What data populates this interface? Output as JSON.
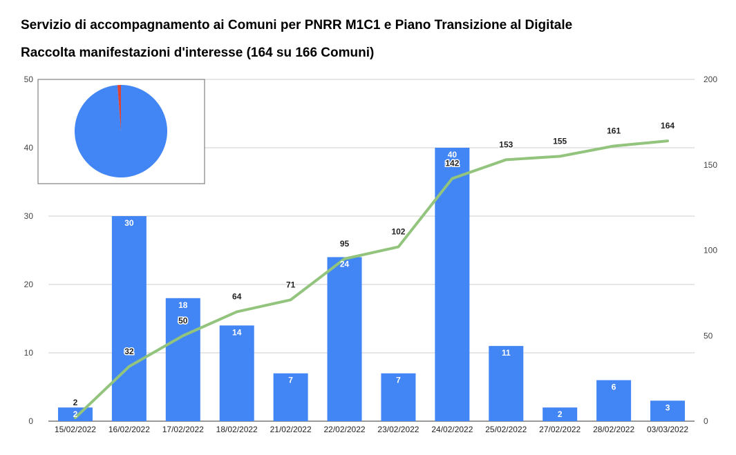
{
  "chart_data": {
    "type": "bar",
    "title": "Servizio di accompagnamento ai Comuni per PNRR M1C1 e Piano Transizione al Digitale",
    "subtitle": "Raccolta manifestazioni d'interesse (164 su 166 Comuni)",
    "categories": [
      "15/02/2022",
      "16/02/2022",
      "17/02/2022",
      "18/02/2022",
      "21/02/2022",
      "22/02/2022",
      "23/02/2022",
      "24/02/2022",
      "25/02/2022",
      "27/02/2022",
      "28/02/2022",
      "03/03/2022"
    ],
    "series": [
      {
        "type": "bar",
        "axis": "left",
        "color": "#4285f4",
        "values": [
          2,
          30,
          18,
          14,
          7,
          24,
          7,
          40,
          11,
          2,
          6,
          3
        ]
      },
      {
        "type": "line",
        "axis": "right",
        "color": "#93c47d",
        "values": [
          2,
          32,
          50,
          64,
          71,
          95,
          102,
          142,
          153,
          155,
          161,
          164
        ]
      }
    ],
    "y_left": {
      "range": [
        0,
        50
      ],
      "ticks": [
        0,
        10,
        20,
        30,
        40,
        50
      ]
    },
    "y_right": {
      "range": [
        0,
        200
      ],
      "ticks": [
        0,
        50,
        100,
        150,
        200
      ]
    },
    "grid": true,
    "inset_pie": {
      "type": "pie",
      "values": [
        164,
        2
      ],
      "colors": [
        "#4285f4",
        "#db4437"
      ]
    }
  }
}
